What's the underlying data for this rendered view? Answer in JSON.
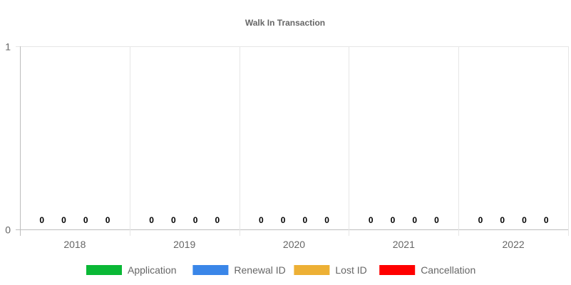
{
  "chart_data": {
    "type": "bar",
    "title": "Walk In Transaction",
    "xlabel": "",
    "ylabel": "",
    "categories": [
      "2018",
      "2019",
      "2020",
      "2021",
      "2022"
    ],
    "series": [
      {
        "name": "Application",
        "color": "#0ab836",
        "values": [
          0,
          0,
          0,
          0,
          0
        ]
      },
      {
        "name": "Renewal ID",
        "color": "#3a86e8",
        "values": [
          0,
          0,
          0,
          0,
          0
        ]
      },
      {
        "name": "Lost ID",
        "color": "#edb035",
        "values": [
          0,
          0,
          0,
          0,
          0
        ]
      },
      {
        "name": "Cancellation",
        "color": "#ff0000",
        "values": [
          0,
          0,
          0,
          0,
          0
        ]
      }
    ],
    "ylim": [
      0,
      1
    ],
    "y_ticks": [
      "0",
      "1"
    ],
    "grid": true,
    "legend": "bottom",
    "show_data_labels": true
  }
}
